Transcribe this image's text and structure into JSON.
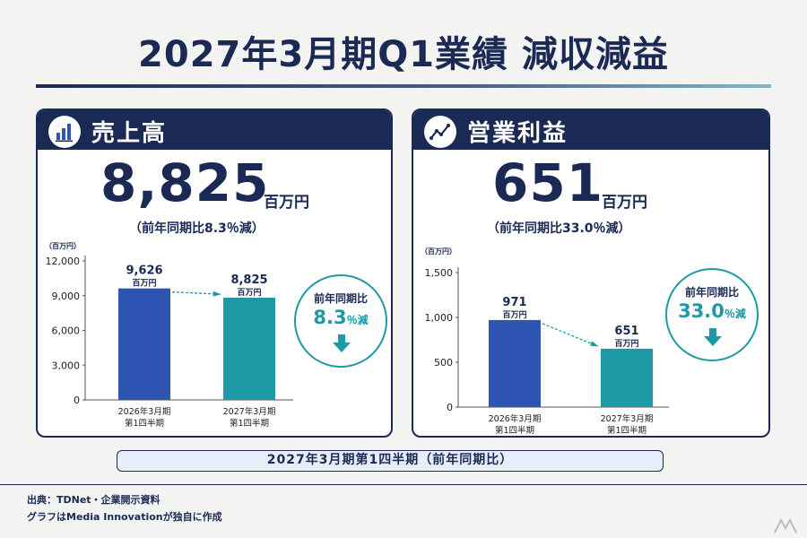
{
  "title": "2027年3月期Q1業績 減収減益",
  "colors": {
    "navy": "#1b2a55",
    "bar_prev": "#2f55b4",
    "bar_curr": "#1d9aa5",
    "accent": "#1d9aa5"
  },
  "sales_panel": {
    "header_title": "売上高",
    "header_icon": "bar-chart-icon",
    "big_value": "8,825",
    "big_unit": "百万円",
    "sub_line": "（前年同期比8.3％減）",
    "badge": {
      "label": "前年同期比",
      "value": "8.3",
      "unit": "％減",
      "icon": "down-arrow-icon"
    }
  },
  "profit_panel": {
    "header_title": "営業利益",
    "header_icon": "line-chart-icon",
    "big_value": "651",
    "big_unit": "百万円",
    "sub_line": "（前年同期比33.0％減）",
    "badge": {
      "label": "前年同期比",
      "value": "33.0",
      "unit": "％減",
      "icon": "down-arrow-icon"
    }
  },
  "chart_data": [
    {
      "type": "bar",
      "unit_label": "（百万円）",
      "categories": [
        [
          "2026年3月期",
          "第1四半期"
        ],
        [
          "2027年3月期",
          "第1四半期"
        ]
      ],
      "values": [
        9626,
        8825
      ],
      "value_labels": [
        "9,626",
        "8,825"
      ],
      "value_unit": "百万円",
      "yticks": [
        0,
        3000,
        6000,
        9000,
        12000
      ],
      "ytick_labels": [
        "0",
        "3,000",
        "6,000",
        "9,000",
        "12,000"
      ],
      "ylim": [
        0,
        12000
      ]
    },
    {
      "type": "bar",
      "unit_label": "（百万円）",
      "categories": [
        [
          "2026年3月期",
          "第1四半期"
        ],
        [
          "2027年3月期",
          "第1四半期"
        ]
      ],
      "values": [
        971,
        651
      ],
      "value_labels": [
        "971",
        "651"
      ],
      "value_unit": "百万円",
      "yticks": [
        0,
        500,
        1000,
        1500
      ],
      "ytick_labels": [
        "0",
        "500",
        "1,000",
        "1,500"
      ],
      "ylim": [
        0,
        1500
      ]
    }
  ],
  "footer_label": "2027年3月期第1四半期（前年同期比）",
  "source_lines": [
    "出典：TDNet・企業開示資料",
    "グラフはMedia Innovationが独自に作成"
  ]
}
